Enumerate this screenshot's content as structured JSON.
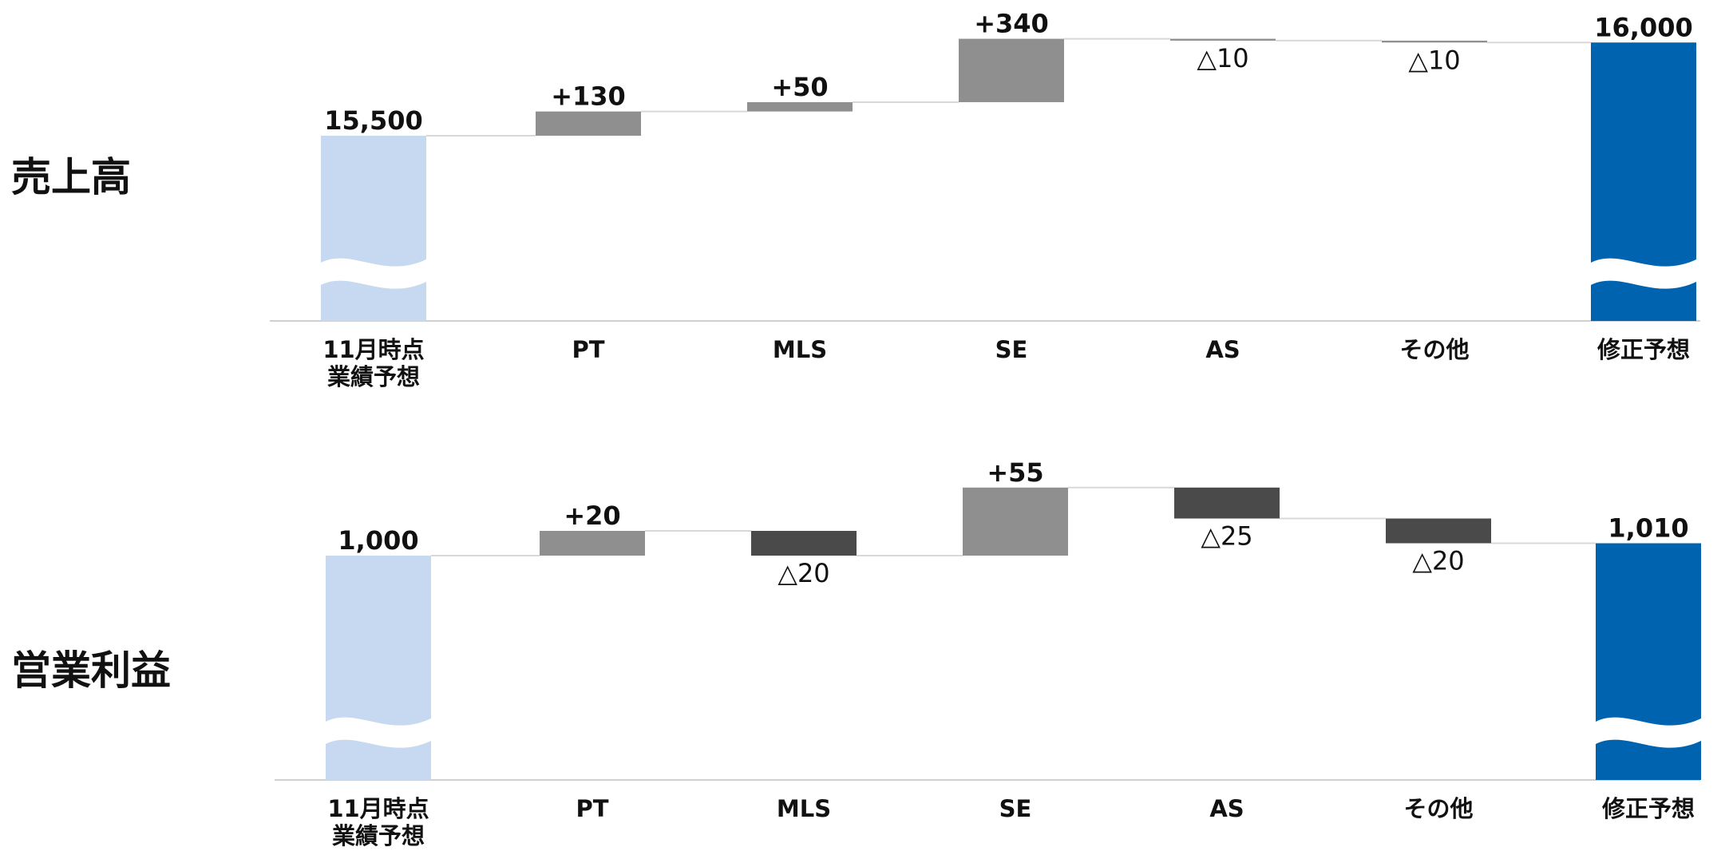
{
  "colors": {
    "start_bar": "#C7D9F0",
    "end_bar": "#0063AF",
    "increase_bar": "#8F8F8F",
    "decrease_bar": "#4A4A4A",
    "sales_small_change": "#8F8F8F",
    "axis": "#d0d0d0",
    "connector": "#d8d8d8"
  },
  "chart_data": [
    {
      "type": "bar",
      "subtype": "waterfall",
      "title": "売上高",
      "categories": [
        [
          "11月時点",
          "業績予想"
        ],
        [
          "PT"
        ],
        [
          "MLS"
        ],
        [
          "SE"
        ],
        [
          "AS"
        ],
        [
          "その他"
        ],
        [
          "修正予想"
        ]
      ],
      "start_value": 15500,
      "changes": [
        130,
        50,
        340,
        -10,
        -10
      ],
      "end_value": 16000,
      "value_labels": [
        "15,500",
        "+130",
        "+50",
        "+340",
        "△10",
        "△10",
        "16,000"
      ],
      "axis_break": true
    },
    {
      "type": "bar",
      "subtype": "waterfall",
      "title": "営業利益",
      "categories": [
        [
          "11月時点",
          "業績予想"
        ],
        [
          "PT"
        ],
        [
          "MLS"
        ],
        [
          "SE"
        ],
        [
          "AS"
        ],
        [
          "その他"
        ],
        [
          "修正予想"
        ]
      ],
      "start_value": 1000,
      "changes": [
        20,
        -20,
        55,
        -25,
        -20
      ],
      "end_value": 1010,
      "value_labels": [
        "1,000",
        "+20",
        "△20",
        "+55",
        "△25",
        "△20",
        "1,010"
      ],
      "axis_break": true
    }
  ]
}
